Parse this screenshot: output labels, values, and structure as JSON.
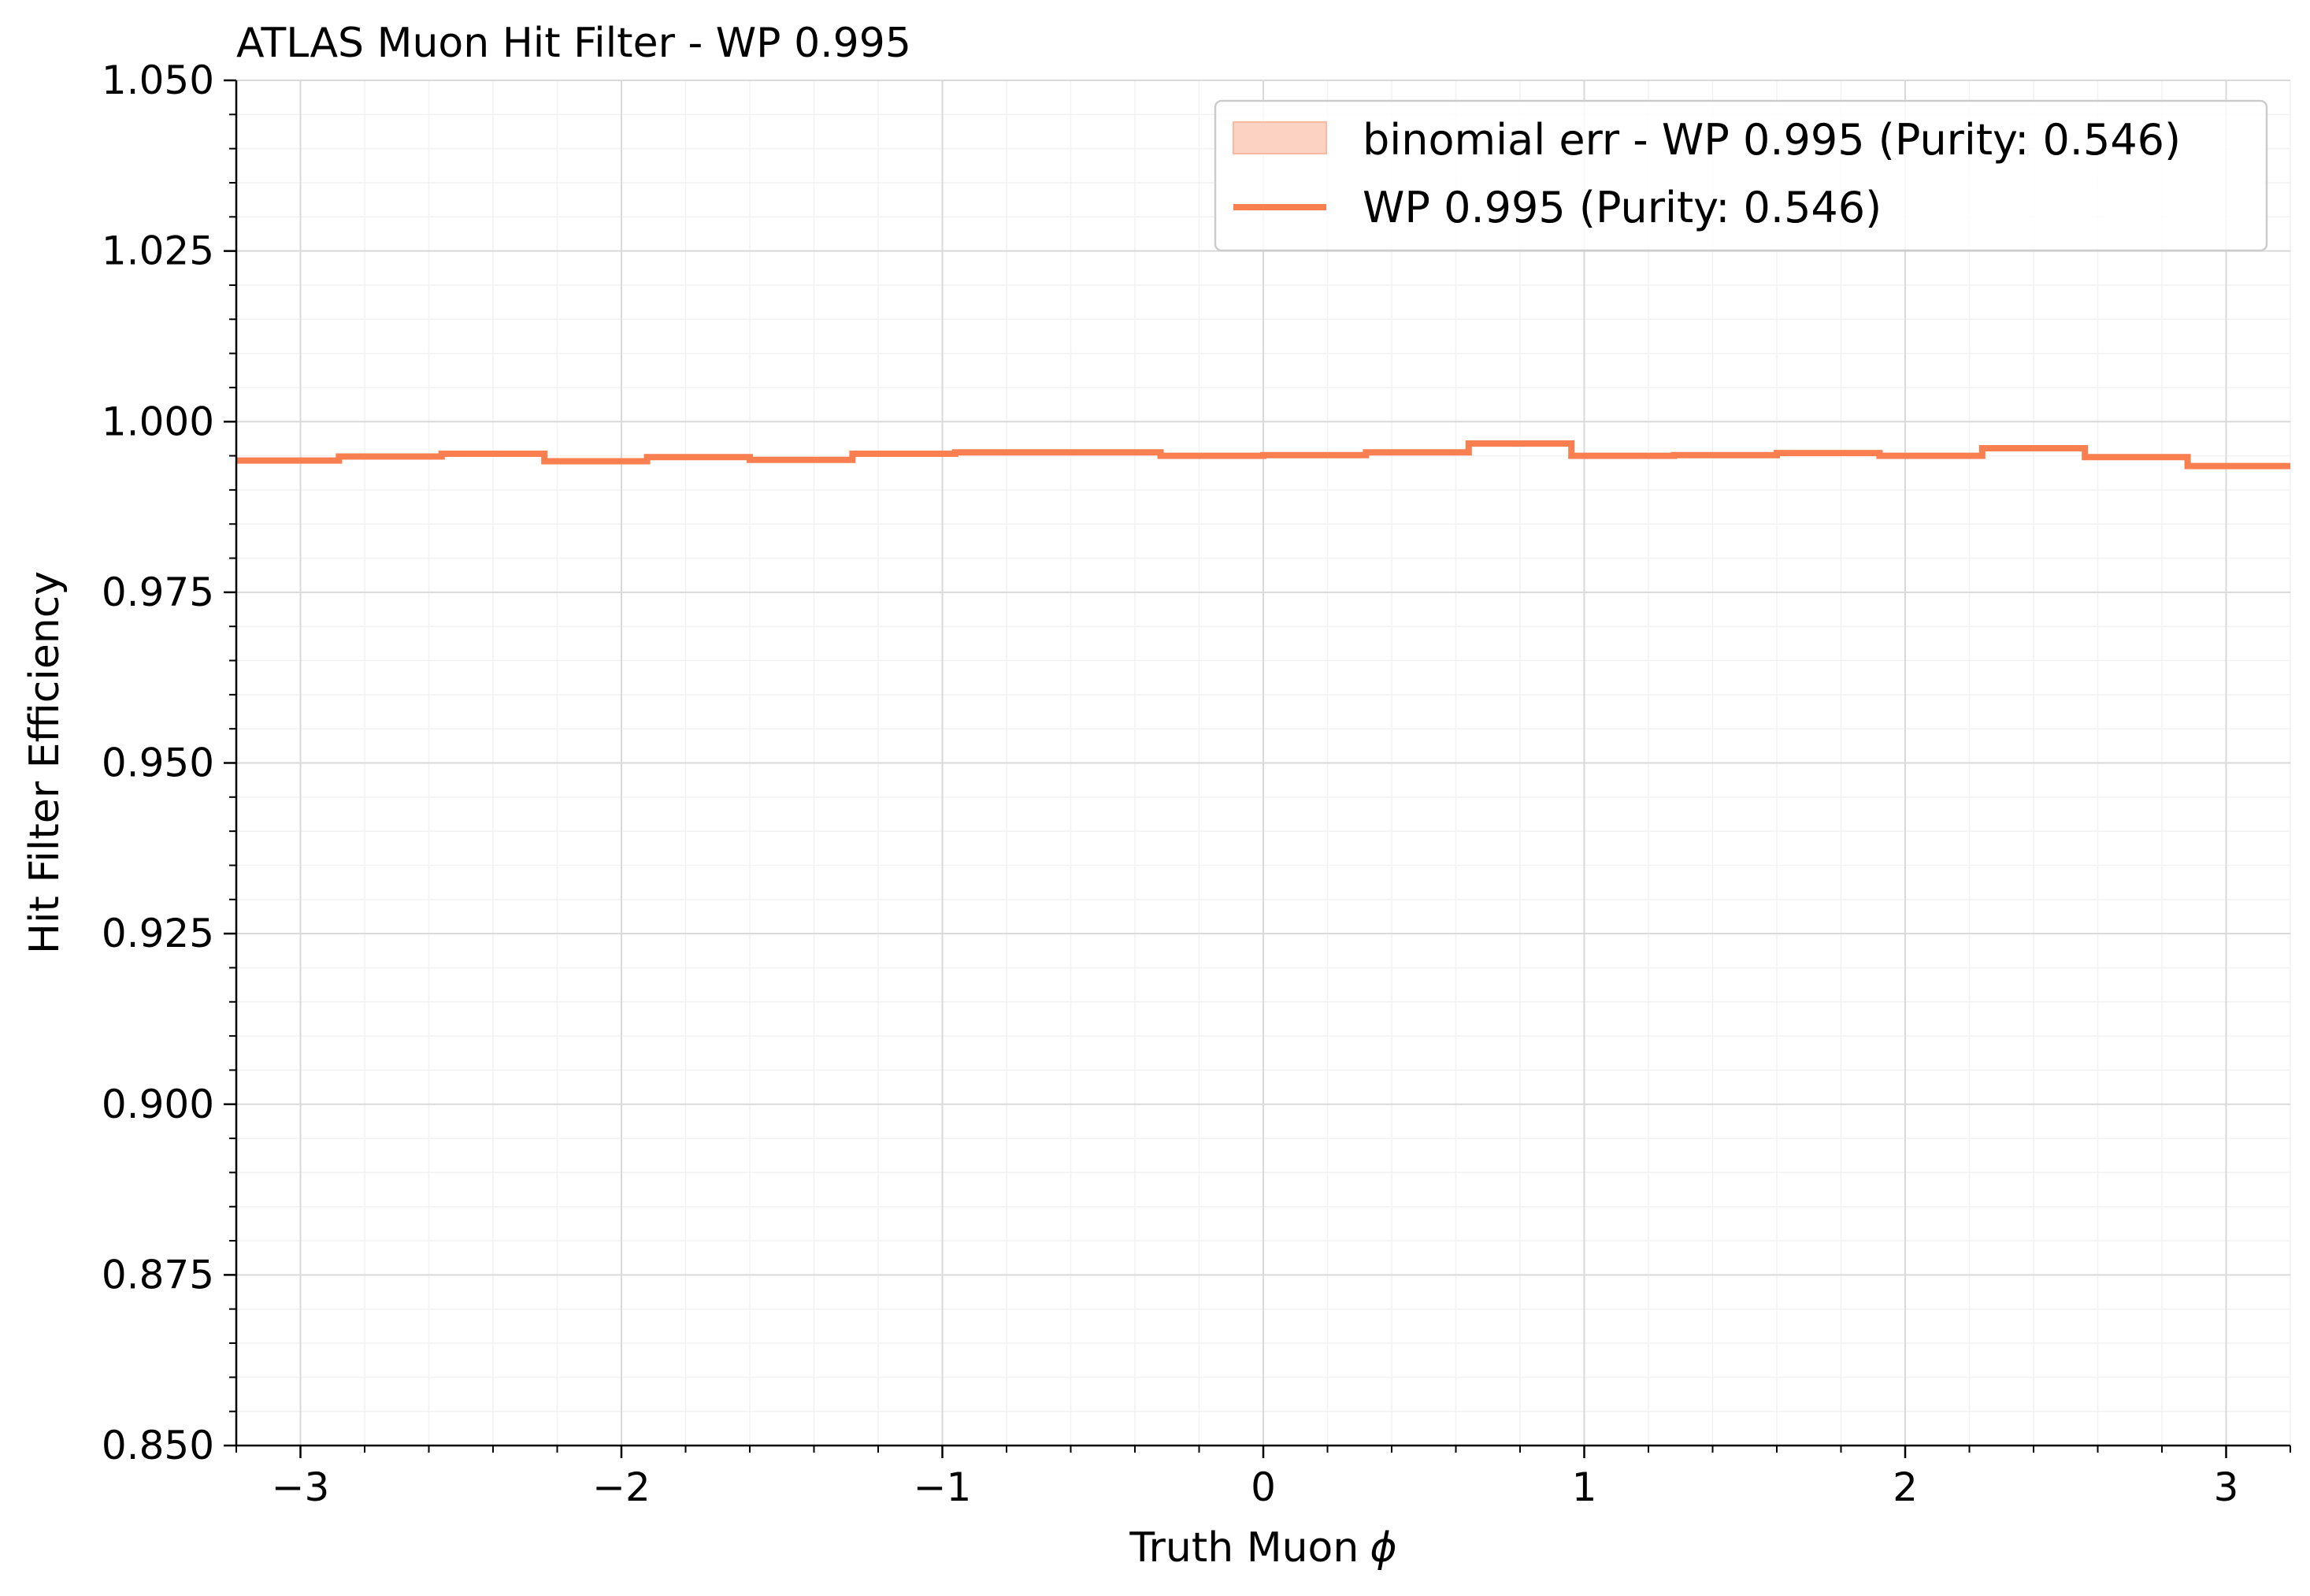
{
  "chart_data": {
    "type": "line",
    "subtype": "step-histogram-with-error-band",
    "title": "ATLAS Muon Hit Filter - WP 0.995",
    "xlabel": "Truth Muon",
    "xlabel_symbol": "ϕ",
    "ylabel": "Hit Filter Efficiency",
    "xlim": [
      -3.2,
      3.2
    ],
    "ylim": [
      0.85,
      1.05
    ],
    "xticks": [
      -3,
      -2,
      -1,
      0,
      1,
      2,
      3
    ],
    "xtick_labels": [
      "−3",
      "−2",
      "−1",
      "0",
      "1",
      "2",
      "3"
    ],
    "yticks": [
      0.85,
      0.875,
      0.9,
      0.925,
      0.95,
      0.975,
      1.0,
      1.025,
      1.05
    ],
    "ytick_labels": [
      "0.850",
      "0.875",
      "0.900",
      "0.925",
      "0.950",
      "0.975",
      "1.000",
      "1.025",
      "1.050"
    ],
    "grid": true,
    "minor_grid": true,
    "legend_position": "upper right",
    "bin_edges": [
      -3.2,
      -2.88,
      -2.56,
      -2.24,
      -1.92,
      -1.6,
      -1.28,
      -0.96,
      -0.64,
      -0.32,
      0.0,
      0.32,
      0.64,
      0.96,
      1.28,
      1.6,
      1.92,
      2.24,
      2.56,
      2.88,
      3.2
    ],
    "series": [
      {
        "name": "WP 0.995 (Purity: 0.546)",
        "kind": "step",
        "color": "#f97f51",
        "values": [
          0.9943,
          0.9949,
          0.9953,
          0.9942,
          0.9948,
          0.9944,
          0.9953,
          0.9955,
          0.9955,
          0.995,
          0.9951,
          0.9955,
          0.9968,
          0.995,
          0.9951,
          0.9954,
          0.995,
          0.9961,
          0.9948,
          0.9935
        ]
      },
      {
        "name": "binomial err - WP 0.995 (Purity: 0.546)",
        "kind": "band",
        "color": "#fcd3c2",
        "edge_color": "#f9b9a0",
        "errors": [
          0.0003,
          0.0003,
          0.0003,
          0.0003,
          0.0003,
          0.0003,
          0.0003,
          0.0003,
          0.0003,
          0.0003,
          0.0003,
          0.0003,
          0.0003,
          0.0003,
          0.0003,
          0.0003,
          0.0003,
          0.0003,
          0.0003,
          0.0003
        ]
      }
    ]
  }
}
